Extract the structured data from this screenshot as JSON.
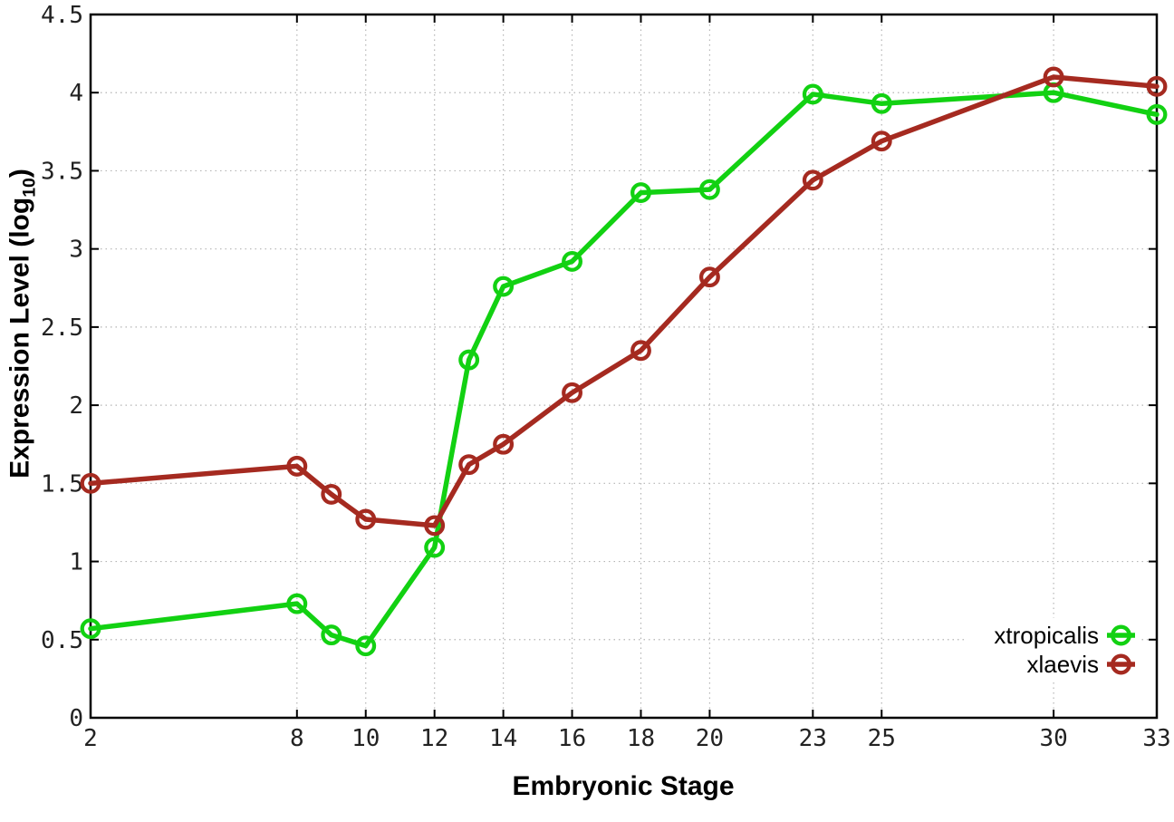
{
  "figure": {
    "background": "#ffffff"
  },
  "chart_data": {
    "type": "line",
    "title": "",
    "xlabel": "Embryonic Stage",
    "ylabel": "Expression Level (log10)",
    "ylabel_parts": {
      "pre": "Expression Level (log",
      "sub": "10",
      "post": ")"
    },
    "xlim": [
      2,
      33
    ],
    "ylim": [
      0,
      4.5
    ],
    "grid": true,
    "legend_position": "inside-bottom-right",
    "x_ticks": [
      2,
      8,
      10,
      12,
      14,
      16,
      18,
      20,
      23,
      25,
      30,
      33
    ],
    "x_tick_labels": [
      "2",
      "8",
      "10",
      "12",
      "14",
      "16",
      "18",
      "20",
      "23",
      "25",
      "30",
      "33"
    ],
    "y_ticks": [
      0,
      0.5,
      1,
      1.5,
      2,
      2.5,
      3,
      3.5,
      4,
      4.5
    ],
    "y_tick_labels": [
      "0",
      "0.5",
      "1",
      "1.5",
      "2",
      "2.5",
      "3",
      "3.5",
      "4",
      "4.5"
    ],
    "x": [
      2,
      8,
      9,
      10,
      12,
      13,
      14,
      16,
      18,
      20,
      23,
      25,
      30,
      33
    ],
    "series": [
      {
        "name": "xtropicalis",
        "color": "#12d112",
        "values": [
          0.57,
          0.73,
          0.53,
          0.46,
          1.09,
          2.29,
          2.76,
          2.92,
          3.36,
          3.38,
          3.99,
          3.93,
          4.0,
          3.86
        ]
      },
      {
        "name": "xlaevis",
        "color": "#a52a20",
        "values": [
          1.5,
          1.61,
          1.43,
          1.27,
          1.23,
          1.62,
          1.75,
          2.08,
          2.35,
          2.82,
          3.44,
          3.69,
          4.1,
          4.04
        ]
      }
    ],
    "axis_color": "#000000",
    "grid_color": "#b4b4b4",
    "tick_label_color": "#222222"
  }
}
